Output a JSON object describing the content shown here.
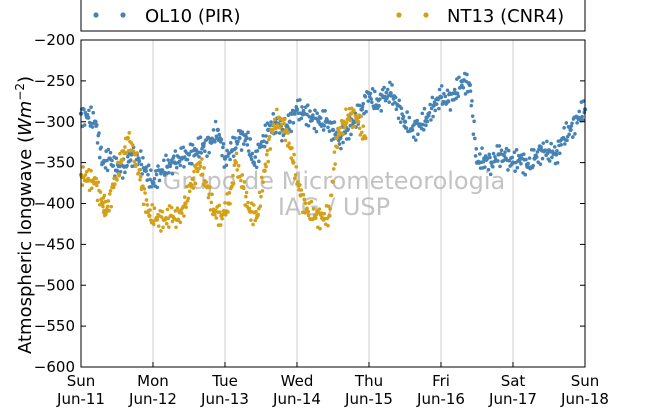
{
  "chart_data": {
    "type": "scatter",
    "ylabel_main": "Atmospheric longwave (",
    "ylabel_unit": "Wm",
    "ylabel_exp": "−2",
    "ylabel_close": ")",
    "ylim": [
      -600,
      -200
    ],
    "yticks": [
      -200,
      -250,
      -300,
      -350,
      -400,
      -450,
      -500,
      -550,
      -600
    ],
    "ytick_labels": [
      "−200",
      "−250",
      "−300",
      "−350",
      "−400",
      "−450",
      "−500",
      "−550",
      "−600"
    ],
    "x_days": [
      0,
      1,
      2,
      3,
      4,
      5,
      6,
      7
    ],
    "x_ticks": [
      {
        "day": "Sun",
        "date": "Jun-11"
      },
      {
        "day": "Mon",
        "date": "Jun-12"
      },
      {
        "day": "Tue",
        "date": "Jun-13"
      },
      {
        "day": "Wed",
        "date": "Jun-14"
      },
      {
        "day": "Thu",
        "date": "Jun-15"
      },
      {
        "day": "Fri",
        "date": "Jun-16"
      },
      {
        "day": "Sat",
        "date": "Jun-17"
      },
      {
        "day": "Sun",
        "date": "Jun-18"
      }
    ],
    "grid": "vertical",
    "legend_position": "top",
    "watermark_lines": [
      "Grupo de Micrometeorologia",
      "IAG / USP"
    ],
    "series": [
      {
        "name": "OL10 (PIR)",
        "color": "#4682b4",
        "x": [
          0.0,
          0.1,
          0.2,
          0.3,
          0.4,
          0.5,
          0.6,
          0.7,
          0.8,
          0.9,
          1.0,
          1.1,
          1.2,
          1.3,
          1.4,
          1.5,
          1.6,
          1.7,
          1.8,
          1.9,
          2.0,
          2.1,
          2.2,
          2.3,
          2.4,
          2.5,
          2.6,
          2.7,
          2.8,
          2.9,
          3.0,
          3.1,
          3.2,
          3.3,
          3.4,
          3.5,
          3.6,
          3.7,
          3.8,
          3.9,
          4.0,
          4.1,
          4.2,
          4.3,
          4.4,
          4.5,
          4.6,
          4.7,
          4.8,
          4.9,
          5.0,
          5.1,
          5.2,
          5.3,
          5.4,
          5.5,
          5.6,
          5.7,
          5.8,
          5.9,
          6.0,
          6.1,
          6.2,
          6.3,
          6.4,
          6.5,
          6.6,
          6.7,
          6.8,
          6.9,
          7.0
        ],
        "y": [
          -290,
          -295,
          -300,
          -350,
          -345,
          -360,
          -355,
          -340,
          -345,
          -360,
          -375,
          -360,
          -355,
          -350,
          -345,
          -340,
          -335,
          -330,
          -325,
          -310,
          -345,
          -335,
          -320,
          -320,
          -350,
          -330,
          -310,
          -300,
          -310,
          -300,
          -285,
          -290,
          -295,
          -300,
          -300,
          -310,
          -320,
          -310,
          -300,
          -285,
          -265,
          -280,
          -270,
          -265,
          -280,
          -300,
          -310,
          -305,
          -295,
          -280,
          -270,
          -275,
          -265,
          -250,
          -255,
          -350,
          -345,
          -350,
          -340,
          -345,
          -350,
          -345,
          -355,
          -345,
          -335,
          -335,
          -340,
          -320,
          -310,
          -295,
          -285
        ]
      },
      {
        "name": "NT13 (CNR4)",
        "color": "#d4a017",
        "x": [
          0.0,
          0.1,
          0.2,
          0.3,
          0.35,
          0.45,
          0.55,
          0.65,
          0.75,
          0.85,
          0.95,
          1.05,
          1.15,
          1.25,
          1.35,
          1.45,
          1.55,
          1.65,
          1.75,
          1.85,
          1.95,
          2.05,
          2.15,
          2.25,
          2.35,
          2.45,
          2.55,
          2.65,
          2.75,
          2.85,
          2.95,
          3.05,
          3.15,
          3.25,
          3.35,
          3.45,
          3.55,
          3.65,
          3.75,
          3.85,
          3.95
        ],
        "y": [
          -365,
          -370,
          -375,
          -400,
          -410,
          -380,
          -350,
          -320,
          -340,
          -380,
          -415,
          -418,
          -420,
          -415,
          -420,
          -400,
          -370,
          -350,
          -380,
          -410,
          -415,
          -400,
          -350,
          -380,
          -410,
          -415,
          -360,
          -310,
          -295,
          -310,
          -350,
          -390,
          -410,
          -415,
          -418,
          -415,
          -320,
          -300,
          -290,
          -300,
          -320
        ]
      }
    ]
  }
}
